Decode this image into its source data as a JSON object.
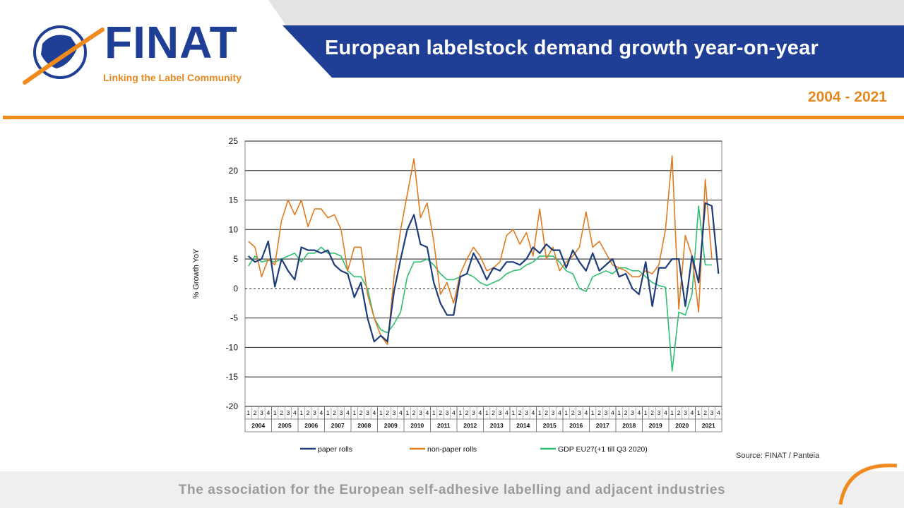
{
  "header": {
    "logo_text": "FINAT",
    "tagline": "Linking the Label Community",
    "title": "European labelstock demand growth year-on-year",
    "years": "2004 - 2021"
  },
  "source": "Source: FINAT / Panteia",
  "footer": "The association for the European self-adhesive labelling and adjacent industries",
  "colors": {
    "brand_blue": "#1f3e96",
    "orange": "#f08a1c",
    "paper": "#1f3d7a",
    "nonpaper": "#e07b20",
    "gdp": "#2fbf71"
  },
  "chart_data": {
    "type": "line",
    "title": "",
    "ylabel": "% Growth YoY",
    "xlabel": "",
    "ylim": [
      -20,
      25
    ],
    "yticks": [
      25,
      20,
      15,
      10,
      5,
      0,
      -5,
      -10,
      -15,
      -20
    ],
    "quarter_labels": [
      "1",
      "2",
      "3",
      "4"
    ],
    "years": [
      "2004",
      "2005",
      "2006",
      "2007",
      "2008",
      "2009",
      "2010",
      "2011",
      "2012",
      "2013",
      "2014",
      "2015",
      "2016",
      "2017",
      "2018",
      "2019",
      "2020",
      "2021"
    ],
    "series": [
      {
        "name": "paper rolls",
        "color": "#1f3d7a",
        "values": [
          5.5,
          4.5,
          5,
          8,
          0.3,
          5,
          3,
          1.5,
          7,
          6.5,
          6.5,
          6,
          6.5,
          4,
          3,
          2.5,
          -1.5,
          1,
          -5,
          -9,
          -8,
          -9,
          -0.5,
          5,
          10,
          12.5,
          7.5,
          7,
          1,
          -2.5,
          -4.5,
          -4.5,
          2,
          2.5,
          6,
          4,
          1.5,
          3.5,
          3,
          4.5,
          4.5,
          4,
          5,
          7,
          6,
          7.5,
          6.5,
          6.5,
          3.5,
          6.5,
          4.5,
          3,
          6,
          3,
          4,
          5,
          2,
          2.5,
          0,
          -1,
          4.5,
          -3,
          3.5,
          3.5,
          5,
          5,
          -3,
          5.5,
          1,
          14.5,
          14,
          2.5
        ]
      },
      {
        "name": "non-paper rolls",
        "color": "#e07b20",
        "values": [
          8,
          7,
          2,
          5,
          4,
          11.5,
          15,
          12.5,
          15,
          10.5,
          13.5,
          13.5,
          12,
          12.5,
          10,
          3,
          7,
          7,
          -1,
          -5,
          -8,
          -9.5,
          2,
          10,
          16,
          22,
          12,
          14.5,
          8,
          -1,
          1,
          -2.5,
          2.5,
          5,
          7,
          5.5,
          3,
          3.5,
          4.5,
          9,
          10,
          7.5,
          9.5,
          5.5,
          13.5,
          5,
          7,
          3,
          4.5,
          5.5,
          7,
          13,
          7,
          8,
          6,
          4,
          3.5,
          3,
          2,
          2,
          3,
          2.5,
          4,
          10,
          22.5,
          -3.5,
          9,
          5.5,
          -4,
          18.5,
          5
        ]
      },
      {
        "name": "GDP EU27(+1 till Q3 2020)",
        "color": "#2fbf71",
        "values": [
          3.8,
          5.5,
          4.5,
          4.8,
          4.5,
          5,
          5.5,
          6,
          4.5,
          6,
          6,
          7,
          6,
          6,
          5.5,
          3,
          2,
          2,
          0,
          -5,
          -7,
          -7.5,
          -6,
          -4,
          2,
          4.5,
          4.5,
          5,
          4,
          2.5,
          1.5,
          1.5,
          2,
          2.5,
          2,
          1,
          0.5,
          1,
          1.5,
          2.5,
          3,
          3.2,
          4,
          4.5,
          5.5,
          5.5,
          5.5,
          4.5,
          3,
          2.5,
          0,
          -0.5,
          2,
          2.5,
          3,
          2.5,
          3.5,
          3.5,
          3,
          3,
          2,
          1,
          0.5,
          0.2,
          -14,
          -4,
          -4.5,
          -1,
          14,
          4,
          4
        ]
      }
    ]
  }
}
